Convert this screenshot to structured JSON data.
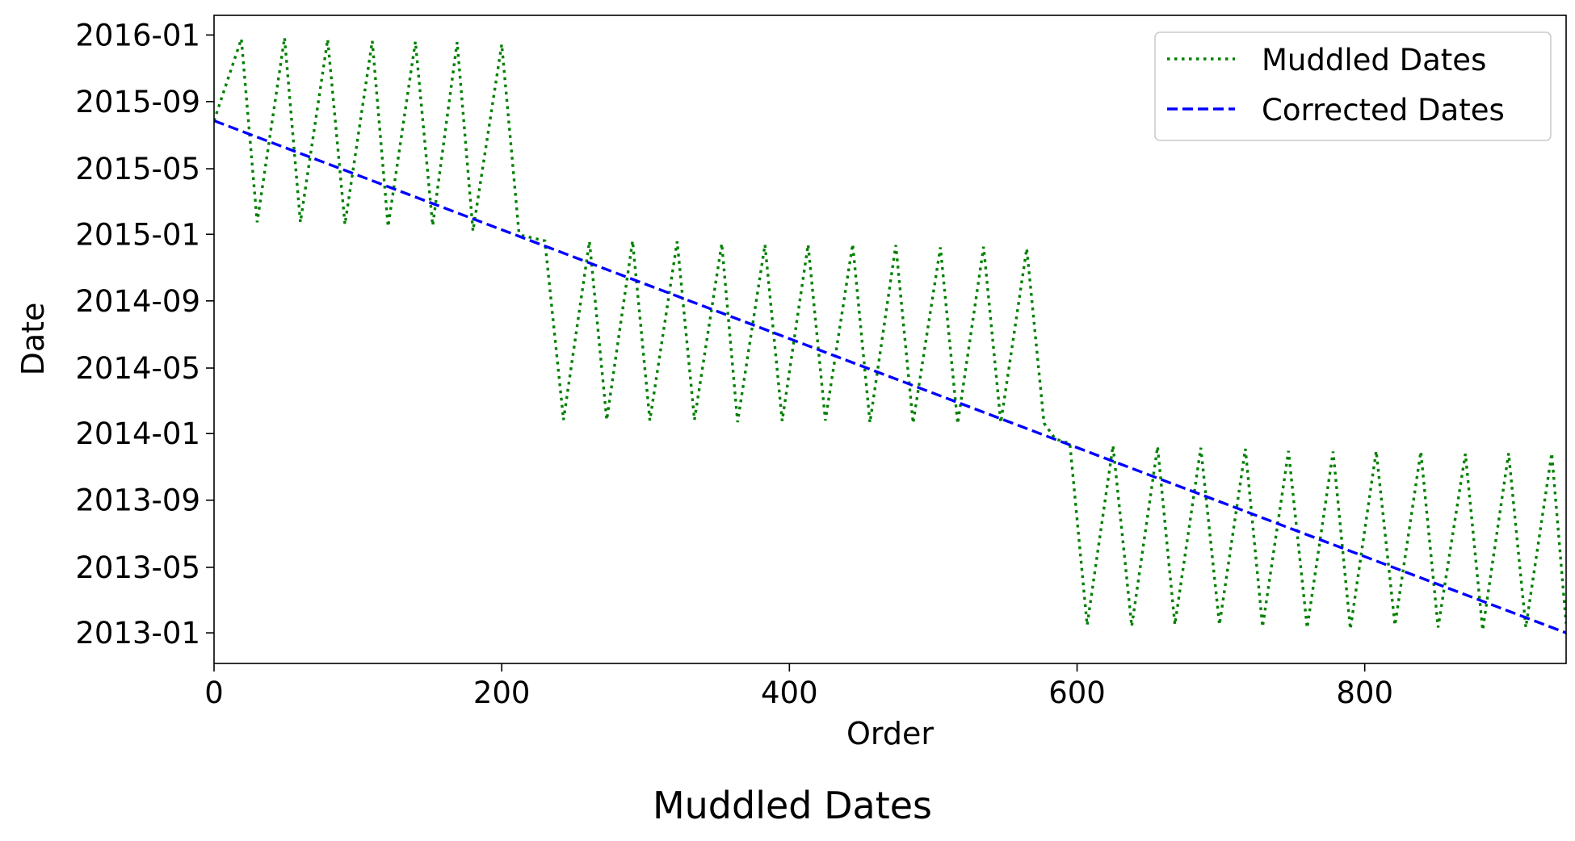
{
  "chart_data": {
    "type": "line",
    "title": "Muddled Dates",
    "xlabel": "Order",
    "ylabel": "Date",
    "xlim": [
      0,
      940
    ],
    "ylim": [
      "2012-11-06",
      "2016-02-06"
    ],
    "x_ticks": [
      0,
      200,
      400,
      600,
      800
    ],
    "y_ticks": [
      "2013-01",
      "2013-05",
      "2013-09",
      "2014-01",
      "2014-05",
      "2014-09",
      "2015-01",
      "2015-05",
      "2015-09",
      "2016-01"
    ],
    "grid": false,
    "legend": {
      "position": "top-right"
    },
    "series": [
      {
        "name": "Muddled Dates",
        "color": "#008000",
        "linestyle": "dotted",
        "x": [
          0,
          19,
          30,
          49,
          60,
          79,
          91,
          110,
          121,
          140,
          152,
          169,
          180,
          200,
          212,
          214,
          230,
          243,
          261,
          273,
          291,
          303,
          322,
          334,
          353,
          364,
          383,
          395,
          413,
          425,
          444,
          456,
          474,
          486,
          505,
          517,
          535,
          547,
          565,
          577,
          585,
          595,
          607,
          625,
          638,
          656,
          668,
          686,
          699,
          717,
          729,
          747,
          760,
          778,
          790,
          808,
          821,
          839,
          851,
          870,
          882,
          900,
          912,
          930,
          940
        ],
        "y": [
          "2015-07-28",
          "2015-12-25",
          "2015-01-23",
          "2015-12-27",
          "2015-01-23",
          "2015-12-24",
          "2015-01-19",
          "2015-12-21",
          "2015-01-15",
          "2015-12-20",
          "2015-01-17",
          "2015-12-19",
          "2015-01-07",
          "2015-12-15",
          "2015-01-04",
          "2014-12-30",
          "2014-12-20",
          "2014-01-26",
          "2014-12-19",
          "2014-01-26",
          "2014-12-20",
          "2014-01-25",
          "2014-12-19",
          "2014-01-26",
          "2014-12-15",
          "2014-01-22",
          "2014-12-13",
          "2014-01-24",
          "2014-12-13",
          "2014-01-25",
          "2014-12-14",
          "2014-01-21",
          "2014-12-12",
          "2014-01-20",
          "2014-12-08",
          "2014-01-19",
          "2014-12-09",
          "2014-01-21",
          "2014-12-06",
          "2014-01-20",
          "2013-12-22",
          "2013-12-14",
          "2013-01-15",
          "2013-12-10",
          "2013-01-13",
          "2013-12-08",
          "2013-01-16",
          "2013-12-06",
          "2013-01-16",
          "2013-12-04",
          "2013-01-12",
          "2013-11-30",
          "2013-01-10",
          "2013-11-29",
          "2013-01-08",
          "2013-11-30",
          "2013-01-15",
          "2013-11-29",
          "2013-01-11",
          "2013-11-25",
          "2013-01-06",
          "2013-11-26",
          "2013-01-11",
          "2013-11-26",
          "2013-01-18"
        ]
      },
      {
        "name": "Corrected Dates",
        "color": "#0000ff",
        "linestyle": "dashed",
        "x": [
          0,
          940
        ],
        "y": [
          "2015-07-28",
          "2013-01-01"
        ]
      }
    ]
  }
}
